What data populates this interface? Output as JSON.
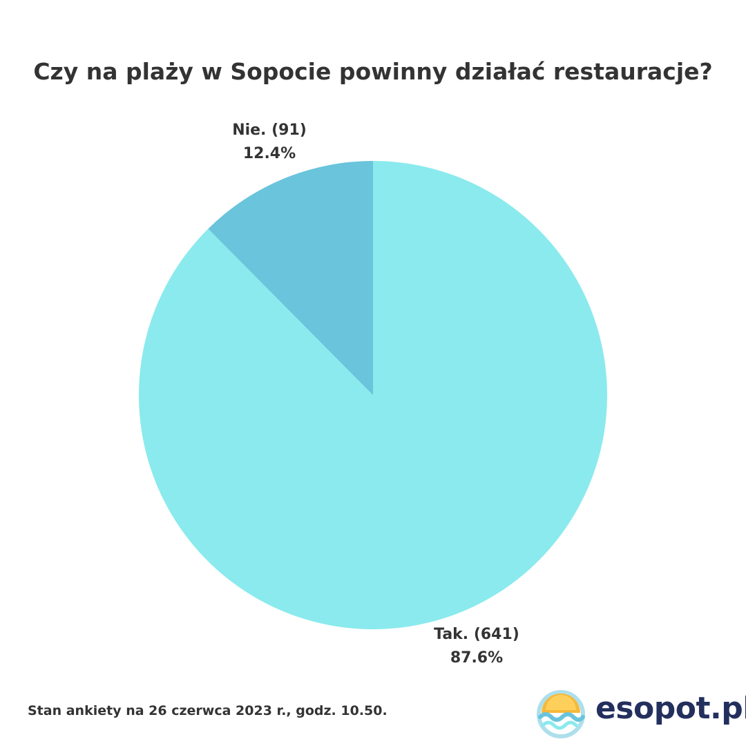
{
  "chart_data": {
    "type": "pie",
    "title": "Czy na plaży w Sopocie powinny działać restauracje?",
    "slices": [
      {
        "label": "Tak. (641)",
        "percent_label": "87.6%",
        "value": 641,
        "percent": 87.6,
        "color": "#8beaed"
      },
      {
        "label": "Nie. (91)",
        "percent_label": "12.4%",
        "value": 91,
        "percent": 12.4,
        "color": "#69c4dc"
      }
    ]
  },
  "footnote": "Stan ankiety na 26 czerwca 2023 r., godz. 10.50.",
  "brand": {
    "name": "esopot.pl",
    "logo_icon": "sun-over-waves-icon",
    "colors": {
      "sun": "#f6b93b",
      "wave": "#69c4dc",
      "text": "#23305e"
    }
  }
}
